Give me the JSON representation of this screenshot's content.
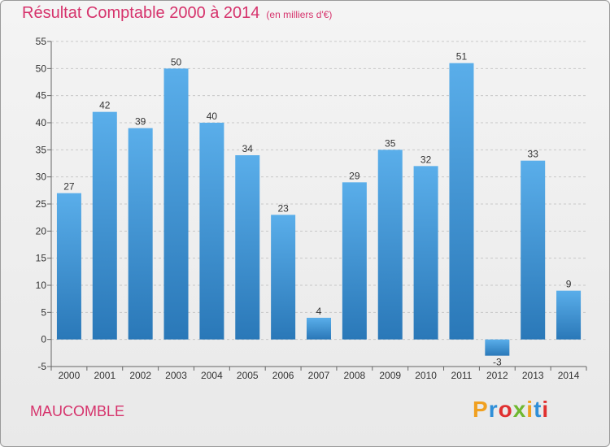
{
  "title": "Résultat Comptable 2000 à 2014",
  "subtitle": "(en milliers d'€)",
  "commune": "MAUCOMBLE",
  "logo": "Proxiti",
  "chart_data": {
    "type": "bar",
    "categories": [
      "2000",
      "2001",
      "2002",
      "2003",
      "2004",
      "2005",
      "2006",
      "2007",
      "2008",
      "2009",
      "2010",
      "2011",
      "2012",
      "2013",
      "2014"
    ],
    "values": [
      27,
      42,
      39,
      50,
      40,
      34,
      23,
      4,
      29,
      35,
      32,
      51,
      -3,
      33,
      9
    ],
    "ylim": [
      -5,
      55
    ],
    "yticks": [
      -5,
      0,
      5,
      10,
      15,
      20,
      25,
      30,
      35,
      40,
      45,
      50,
      55
    ],
    "grid": true,
    "color": "#4a9fe0"
  }
}
